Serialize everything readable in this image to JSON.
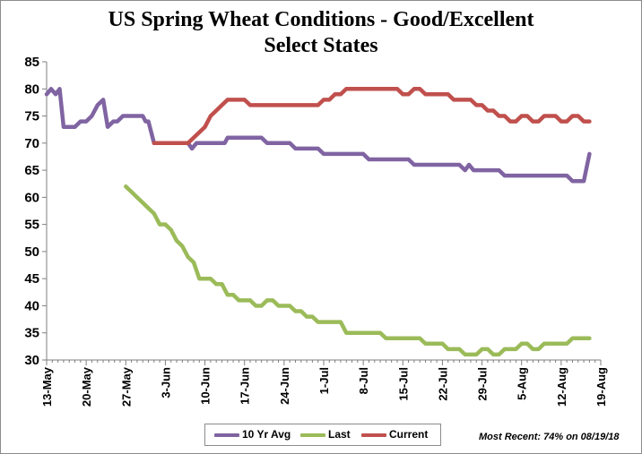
{
  "chart_data": {
    "type": "line",
    "title": "US Spring Wheat Conditions - Good/Excellent",
    "subtitle": "Select States",
    "xlabel": "",
    "ylabel": "",
    "ylim": [
      30,
      85
    ],
    "yticks": [
      30,
      35,
      40,
      45,
      50,
      55,
      60,
      65,
      70,
      75,
      80,
      85
    ],
    "grid": false,
    "legend_position": "bottom-center",
    "x_start_date": "13-May",
    "x_tick_labels": [
      "13-May",
      "20-May",
      "27-May",
      "3-Jun",
      "10-Jun",
      "17-Jun",
      "24-Jun",
      "1-Jul",
      "8-Jul",
      "15-Jul",
      "22-Jul",
      "29-Jul",
      "5-Aug",
      "12-Aug",
      "19-Aug"
    ],
    "series": [
      {
        "name": "10 Yr Avg",
        "color": "#8064a2",
        "points": [
          [
            0,
            79
          ],
          [
            0.8,
            80
          ],
          [
            1.6,
            79
          ],
          [
            2.3,
            80
          ],
          [
            3,
            73
          ],
          [
            5,
            73
          ],
          [
            6,
            74
          ],
          [
            7,
            74
          ],
          [
            8,
            75
          ],
          [
            9,
            77
          ],
          [
            10,
            78
          ],
          [
            10.8,
            73
          ],
          [
            11.8,
            74
          ],
          [
            12.5,
            74
          ],
          [
            13.5,
            75
          ],
          [
            17,
            75
          ],
          [
            17.5,
            74
          ],
          [
            18,
            74
          ],
          [
            19,
            70
          ],
          [
            25,
            70
          ],
          [
            25.7,
            69
          ],
          [
            26.5,
            70
          ],
          [
            31.5,
            70
          ],
          [
            32,
            71
          ],
          [
            38,
            71
          ],
          [
            39,
            70
          ],
          [
            43,
            70
          ],
          [
            44,
            69
          ],
          [
            48,
            69
          ],
          [
            49,
            68
          ],
          [
            56,
            68
          ],
          [
            57,
            67
          ],
          [
            64,
            67
          ],
          [
            65,
            66
          ],
          [
            73,
            66
          ],
          [
            74,
            65
          ],
          [
            74.7,
            66
          ],
          [
            75.5,
            65
          ],
          [
            80,
            65
          ],
          [
            81,
            64
          ],
          [
            92,
            64
          ],
          [
            93,
            63
          ],
          [
            95,
            63
          ],
          [
            96,
            68
          ]
        ]
      },
      {
        "name": "Last",
        "color": "#9bbb59",
        "points": [
          [
            14,
            62
          ],
          [
            15,
            61
          ],
          [
            16,
            60
          ],
          [
            17,
            59
          ],
          [
            18,
            58
          ],
          [
            19,
            57
          ],
          [
            20,
            55
          ],
          [
            21,
            55
          ],
          [
            22,
            54
          ],
          [
            23,
            52
          ],
          [
            24,
            51
          ],
          [
            25,
            49
          ],
          [
            26,
            48
          ],
          [
            27,
            45
          ],
          [
            28,
            45
          ],
          [
            29,
            45
          ],
          [
            30,
            44
          ],
          [
            31,
            44
          ],
          [
            32,
            42
          ],
          [
            33,
            42
          ],
          [
            34,
            41
          ],
          [
            36,
            41
          ],
          [
            37,
            40
          ],
          [
            38,
            40
          ],
          [
            39,
            41
          ],
          [
            40,
            41
          ],
          [
            41,
            40
          ],
          [
            43,
            40
          ],
          [
            44,
            39
          ],
          [
            45,
            39
          ],
          [
            46,
            38
          ],
          [
            47,
            38
          ],
          [
            48,
            37
          ],
          [
            52,
            37
          ],
          [
            53,
            35
          ],
          [
            59,
            35
          ],
          [
            60,
            34
          ],
          [
            66,
            34
          ],
          [
            67,
            33
          ],
          [
            70,
            33
          ],
          [
            71,
            32
          ],
          [
            73,
            32
          ],
          [
            74,
            31
          ],
          [
            76,
            31
          ],
          [
            77,
            32
          ],
          [
            78,
            32
          ],
          [
            79,
            31
          ],
          [
            80,
            31
          ],
          [
            81,
            32
          ],
          [
            83,
            32
          ],
          [
            84,
            33
          ],
          [
            85,
            33
          ],
          [
            86,
            32
          ],
          [
            87,
            32
          ],
          [
            88,
            33
          ],
          [
            92,
            33
          ],
          [
            93,
            34
          ],
          [
            96,
            34
          ]
        ]
      },
      {
        "name": "Current",
        "color": "#c0504d",
        "points": [
          [
            19,
            70
          ],
          [
            25,
            70
          ],
          [
            26,
            71
          ],
          [
            27,
            72
          ],
          [
            28,
            73
          ],
          [
            29,
            75
          ],
          [
            30,
            76
          ],
          [
            31,
            77
          ],
          [
            32,
            78
          ],
          [
            35,
            78
          ],
          [
            36,
            77
          ],
          [
            48,
            77
          ],
          [
            49,
            78
          ],
          [
            50,
            78
          ],
          [
            51,
            79
          ],
          [
            52,
            79
          ],
          [
            53,
            80
          ],
          [
            62,
            80
          ],
          [
            63,
            79
          ],
          [
            64,
            79
          ],
          [
            65,
            80
          ],
          [
            66,
            80
          ],
          [
            67,
            79
          ],
          [
            71,
            79
          ],
          [
            72,
            78
          ],
          [
            75,
            78
          ],
          [
            76,
            77
          ],
          [
            77,
            77
          ],
          [
            78,
            76
          ],
          [
            79,
            76
          ],
          [
            80,
            75
          ],
          [
            81,
            75
          ],
          [
            82,
            74
          ],
          [
            83,
            74
          ],
          [
            84,
            75
          ],
          [
            85,
            75
          ],
          [
            86,
            74
          ],
          [
            87,
            74
          ],
          [
            88,
            75
          ],
          [
            90,
            75
          ],
          [
            91,
            74
          ],
          [
            92,
            74
          ],
          [
            93,
            75
          ],
          [
            94,
            75
          ],
          [
            95,
            74
          ],
          [
            96,
            74
          ]
        ]
      }
    ]
  },
  "legend": {
    "items": [
      "10 Yr Avg",
      "Last",
      "Current"
    ]
  },
  "note": "Most Recent: 74% on 08/19/18"
}
